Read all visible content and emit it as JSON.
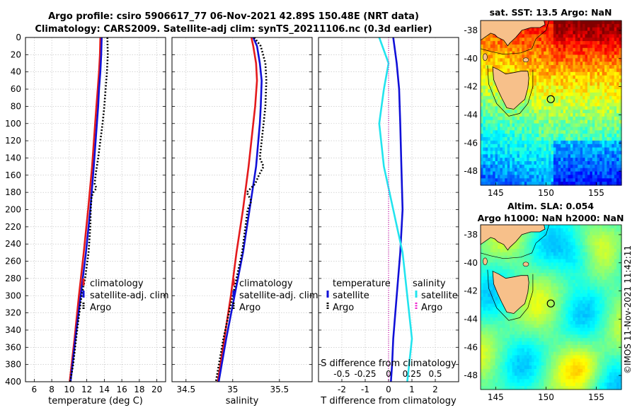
{
  "titles": {
    "line1": "Argo profile: csiro 5906617_77 06-Nov-2021 42.89S 150.48E (NRT data)",
    "line2": "Climatology: CARS2009. Satellite-adj clim: synTS_20211106.nc (0.3d earlier)"
  },
  "credit": "©IMOS 11-Nov-2021 11:42:11",
  "colors": {
    "climatology": "#e41a1c",
    "satellite": "#1010d8",
    "argo": "#000000",
    "salinity_satellite": "#22e4ee",
    "salinity_argo": "#ee22cc",
    "grid": "#bdbdbd"
  },
  "chart_data": [
    {
      "type": "line",
      "id": "temperature",
      "xlabel": "temperature (deg C)",
      "ylabel": "",
      "xlim": [
        5,
        21
      ],
      "ylim": [
        400,
        0
      ],
      "xticks": [
        6,
        8,
        10,
        12,
        14,
        16,
        18,
        20
      ],
      "yticks": [
        0,
        20,
        40,
        60,
        80,
        100,
        120,
        140,
        160,
        180,
        200,
        220,
        240,
        260,
        280,
        300,
        320,
        340,
        360,
        380,
        400
      ],
      "grid": true,
      "legend_position": "lower-right",
      "series": [
        {
          "name": "climatology",
          "style": "solid",
          "color": "#e41a1c",
          "depth": [
            0,
            20,
            40,
            60,
            80,
            100,
            150,
            200,
            250,
            300,
            350,
            400
          ],
          "values": [
            13.55,
            13.5,
            13.4,
            13.25,
            13.1,
            12.95,
            12.6,
            12.15,
            11.65,
            11.1,
            10.6,
            10.05
          ]
        },
        {
          "name": "satellite-adj. clim",
          "style": "solid",
          "color": "#1010d8",
          "depth": [
            0,
            20,
            40,
            60,
            80,
            100,
            150,
            200,
            250,
            300,
            350,
            400
          ],
          "values": [
            13.7,
            13.65,
            13.55,
            13.4,
            13.3,
            13.15,
            12.8,
            12.4,
            11.9,
            11.3,
            10.7,
            10.15
          ]
        },
        {
          "name": "Argo",
          "style": "dotted",
          "color": "#000000",
          "depth": [
            0,
            20,
            40,
            60,
            80,
            100,
            120,
            140,
            160,
            170,
            175,
            180,
            185,
            200,
            220,
            250,
            280,
            300,
            340,
            380,
            400
          ],
          "values": [
            14.35,
            14.4,
            14.3,
            14.15,
            14.0,
            13.8,
            13.55,
            13.3,
            13.0,
            12.9,
            13.1,
            12.75,
            12.55,
            12.45,
            12.4,
            12.2,
            11.8,
            11.4,
            10.9,
            10.45,
            10.1
          ]
        }
      ]
    },
    {
      "type": "line",
      "id": "salinity",
      "xlabel": "salinity",
      "ylabel": "",
      "xlim": [
        34.35,
        35.85
      ],
      "ylim": [
        400,
        0
      ],
      "xticks": [
        34.5,
        35,
        35.5
      ],
      "xticklabels": [
        "34.5",
        "35",
        "35.5"
      ],
      "yticks": [
        0,
        20,
        40,
        60,
        80,
        100,
        120,
        140,
        160,
        180,
        200,
        220,
        240,
        260,
        280,
        300,
        320,
        340,
        360,
        380,
        400
      ],
      "grid": true,
      "legend_position": "lower-right",
      "series": [
        {
          "name": "climatology",
          "style": "solid",
          "color": "#e41a1c",
          "depth": [
            0,
            10,
            30,
            50,
            80,
            100,
            150,
            200,
            250,
            300,
            350,
            400
          ],
          "values": [
            35.2,
            35.22,
            35.25,
            35.26,
            35.24,
            35.22,
            35.17,
            35.11,
            35.04,
            34.98,
            34.91,
            34.84
          ]
        },
        {
          "name": "satellite-adj. clim",
          "style": "solid",
          "color": "#1010d8",
          "depth": [
            0,
            10,
            30,
            50,
            80,
            100,
            150,
            200,
            250,
            300,
            350,
            400
          ],
          "values": [
            35.22,
            35.26,
            35.29,
            35.31,
            35.3,
            35.29,
            35.25,
            35.18,
            35.11,
            35.02,
            34.93,
            34.85
          ]
        },
        {
          "name": "Argo",
          "style": "dotted",
          "color": "#000000",
          "depth": [
            0,
            10,
            30,
            50,
            80,
            100,
            140,
            150,
            160,
            170,
            180,
            190,
            200,
            250,
            300,
            350,
            400
          ],
          "values": [
            35.23,
            35.3,
            35.35,
            35.36,
            35.35,
            35.33,
            35.29,
            35.33,
            35.28,
            35.24,
            35.15,
            35.2,
            35.16,
            35.1,
            35.0,
            34.9,
            34.82
          ]
        }
      ]
    },
    {
      "type": "line",
      "id": "difference",
      "xlabel": "T difference from climatology",
      "xlabel_top": "S difference from climatology",
      "ylabel": "",
      "xlim": [
        -3,
        3
      ],
      "ylim": [
        400,
        0
      ],
      "xticks": [
        -2,
        -1,
        0,
        1,
        2
      ],
      "xticklabels": [
        "-2",
        "-1",
        "0",
        "1",
        "2"
      ],
      "sticks": [
        -0.5,
        -0.25,
        0,
        0.25,
        0.5
      ],
      "sticklabels": [
        "-0.5",
        "-0.25",
        "0",
        "0.25",
        "0.5"
      ],
      "yticks": [
        0,
        20,
        40,
        60,
        80,
        100,
        120,
        140,
        160,
        180,
        200,
        220,
        240,
        260,
        280,
        300,
        320,
        340,
        360,
        380,
        400
      ],
      "grid": true,
      "legend_position": "lower",
      "legend_groups": {
        "temperature": "temperature",
        "salinity": "salinity"
      },
      "series": [
        {
          "name": "satellite",
          "group": "temperature",
          "style": "solid",
          "color": "#1010d8",
          "depth": [
            0,
            30,
            60,
            100,
            150,
            200,
            250,
            300,
            350,
            380,
            400
          ],
          "values": [
            0.2,
            0.35,
            0.45,
            0.5,
            0.55,
            0.6,
            0.5,
            0.35,
            0.2,
            0.15,
            0.1
          ]
        },
        {
          "name": "Argo",
          "group": "temperature",
          "style": "dotted",
          "color": "#000000",
          "depth": [
            0,
            400
          ],
          "values": [
            0,
            0
          ]
        },
        {
          "name": "satellite",
          "group": "salinity",
          "style": "solid",
          "color": "#22e4ee",
          "depth": [
            0,
            30,
            60,
            100,
            150,
            200,
            250,
            300,
            350,
            400
          ],
          "values": [
            -0.1,
            0.0,
            -0.05,
            -0.1,
            -0.05,
            0.05,
            0.15,
            0.2,
            0.25,
            0.2
          ]
        },
        {
          "name": "Argo",
          "group": "salinity",
          "style": "dotted",
          "color": "#ee22cc",
          "depth": [
            0,
            400
          ],
          "values": [
            0,
            0
          ]
        }
      ]
    },
    {
      "type": "heatmap",
      "id": "sst_map",
      "title": "sat. SST: 13.5 Argo: NaN",
      "xlim": [
        143.5,
        157.5
      ],
      "ylim": [
        -49,
        -37.3
      ],
      "xticks": [
        145,
        150,
        155
      ],
      "yticks": [
        -38,
        -40,
        -42,
        -44,
        -46,
        -48
      ],
      "float_marker": {
        "lon": 150.48,
        "lat": -42.89
      }
    },
    {
      "type": "heatmap",
      "id": "sla_map",
      "title": "Altim. SLA: 0.054",
      "subtitle": "Argo h1000: NaN h2000: NaN",
      "xlim": [
        143.5,
        157.5
      ],
      "ylim": [
        -49,
        -37.3
      ],
      "xticks": [
        145,
        150,
        155
      ],
      "yticks": [
        -38,
        -40,
        -42,
        -44,
        -46,
        -48
      ],
      "float_marker": {
        "lon": 150.48,
        "lat": -42.89
      }
    }
  ]
}
